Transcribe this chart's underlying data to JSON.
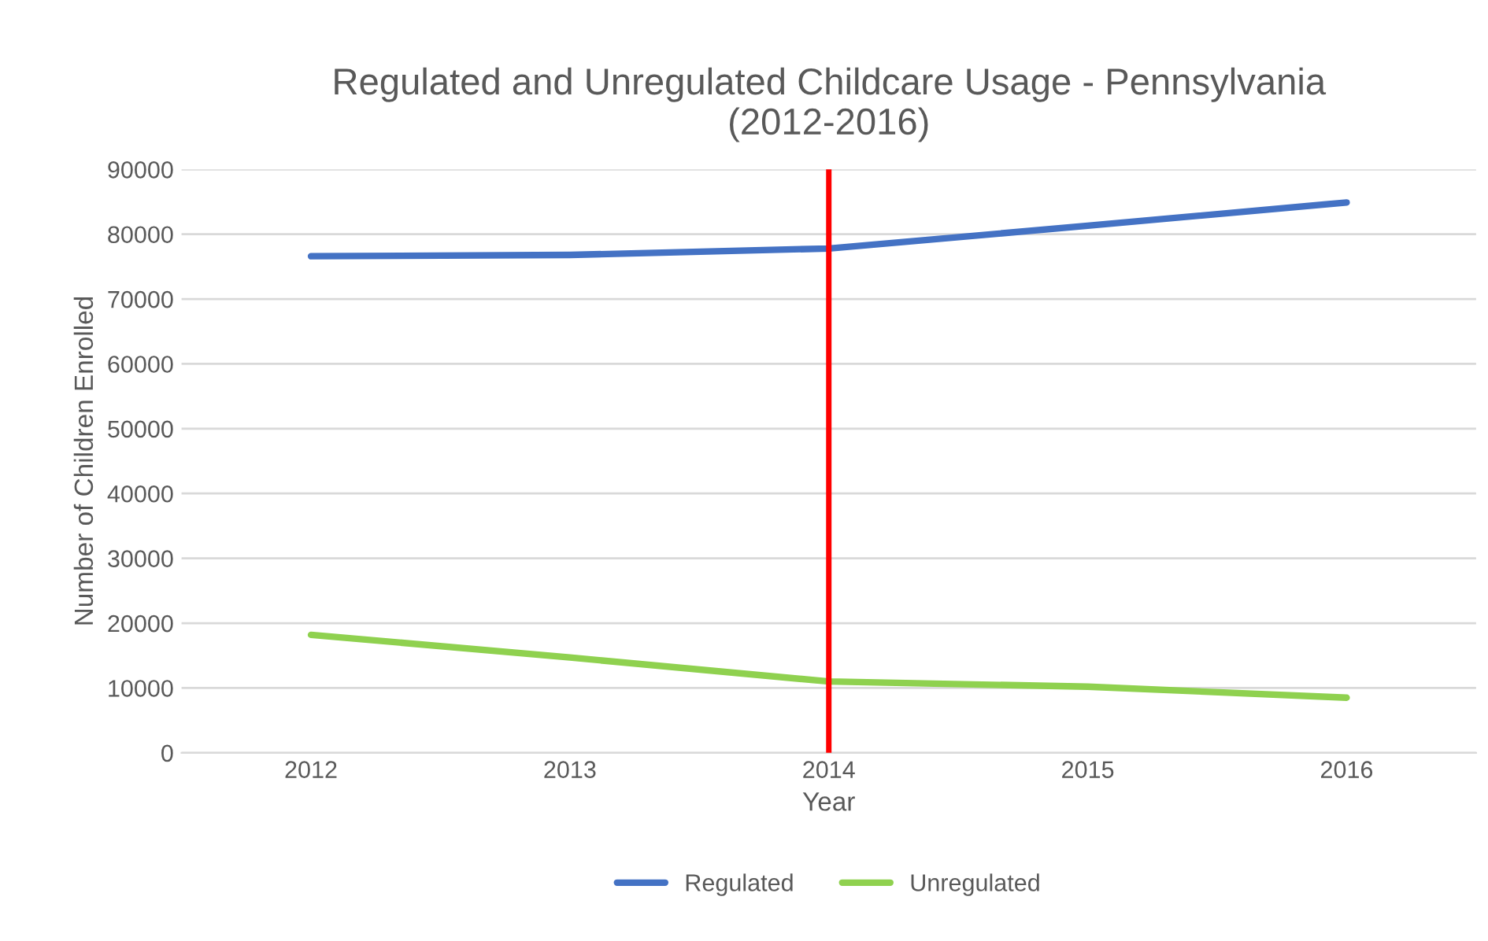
{
  "chart_data": {
    "type": "line",
    "title": "Regulated and Unregulated Childcare Usage - Pennsylvania\n(2012-2016)",
    "xlabel": "Year",
    "ylabel": "Number of Children Enrolled",
    "categories": [
      "2012",
      "2013",
      "2014",
      "2015",
      "2016"
    ],
    "series": [
      {
        "name": "Regulated",
        "color": "#4472c4",
        "values": [
          76600,
          76800,
          77800,
          81300,
          84900
        ]
      },
      {
        "name": "Unregulated",
        "color": "#8fd14f",
        "values": [
          18200,
          14700,
          11000,
          10200,
          8500
        ]
      }
    ],
    "ylim": [
      0,
      90000
    ],
    "yticks": [
      0,
      10000,
      20000,
      30000,
      40000,
      50000,
      60000,
      70000,
      80000,
      90000
    ],
    "ref_lines": [
      {
        "axis": "x",
        "value": "2014",
        "color": "#ff0000"
      }
    ],
    "grid": "y",
    "legend": "bottom",
    "marker": "none",
    "line_style": "solid"
  }
}
